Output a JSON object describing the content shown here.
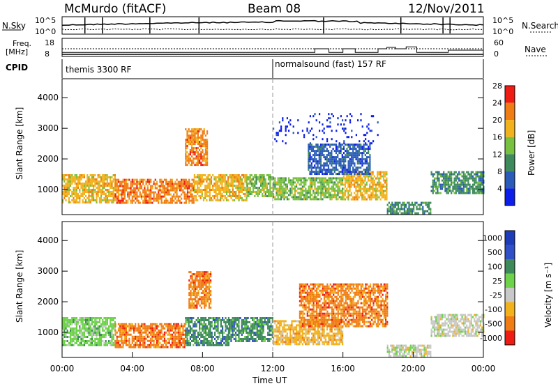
{
  "header": {
    "station": "McMurdo (fitACF)",
    "beam": "Beam 08",
    "date": "12/Nov/2011"
  },
  "chart_data": [
    {
      "name": "noise",
      "type": "line",
      "left_label": "N.Sky",
      "right_label": "N.Search",
      "left_ticks": [
        "10^5",
        "10^0"
      ],
      "right_ticks": [
        "10^5",
        "10^0"
      ]
    },
    {
      "name": "freq-nave",
      "type": "line",
      "left_label_1": "Freq.",
      "left_label_2": "[MHz]",
      "right_label": "Nave",
      "left_ticks": [
        "18",
        "8"
      ],
      "right_ticks": [
        "60",
        "0"
      ],
      "nave_steps": [
        {
          "t": 0,
          "v": 12
        },
        {
          "t": 14.0,
          "v": 12
        },
        {
          "t": 14.4,
          "v": 25
        },
        {
          "t": 15.2,
          "v": 12
        },
        {
          "t": 16.0,
          "v": 25
        },
        {
          "t": 16.7,
          "v": 12
        },
        {
          "t": 18.0,
          "v": 25
        },
        {
          "t": 18.5,
          "v": 30
        },
        {
          "t": 19.0,
          "v": 25
        },
        {
          "t": 19.6,
          "v": 32
        },
        {
          "t": 20.2,
          "v": 12
        },
        {
          "t": 21.5,
          "v": 12
        },
        {
          "t": 22.0,
          "v": 20
        },
        {
          "t": 24,
          "v": 20
        }
      ]
    },
    {
      "name": "cpid",
      "type": "table",
      "label": "CPID",
      "segments": [
        {
          "start": 0,
          "text": "themis 3300 RF"
        },
        {
          "start": 12,
          "text": "normalsound (fast) 157 RF"
        }
      ]
    },
    {
      "name": "power",
      "type": "heatmap",
      "ylabel": "Slant Range [km]",
      "yticks": [
        1000,
        2000,
        3000,
        4000
      ],
      "ylim": [
        180,
        4620
      ],
      "xlim": [
        0,
        24
      ],
      "colorbar_label": "Power [dB]",
      "colorbar_ticks": [
        "4",
        "8",
        "12",
        "16",
        "20",
        "24",
        "28"
      ],
      "colors": [
        "#0d1eea",
        "#2a5bb8",
        "#3e8a5a",
        "#78c040",
        "#f2b21c",
        "#f07c14",
        "#ee1c12"
      ],
      "blobs": [
        {
          "t0": 0.0,
          "t1": 3.0,
          "r0": 600,
          "r1": 1500,
          "level": 4
        },
        {
          "t0": 3.0,
          "t1": 7.5,
          "r0": 550,
          "r1": 1350,
          "level": 5
        },
        {
          "t0": 7.5,
          "t1": 10.5,
          "r0": 650,
          "r1": 1500,
          "level": 4
        },
        {
          "t0": 10.5,
          "t1": 12.0,
          "r0": 800,
          "r1": 1500,
          "level": 3
        },
        {
          "t0": 12.0,
          "t1": 16.0,
          "r0": 650,
          "r1": 1400,
          "level": 3
        },
        {
          "t0": 16.0,
          "t1": 18.5,
          "r0": 700,
          "r1": 1600,
          "level": 4
        },
        {
          "t0": 18.5,
          "t1": 21.0,
          "r0": 250,
          "r1": 600,
          "level": 2
        },
        {
          "t0": 21.0,
          "t1": 24.0,
          "r0": 900,
          "r1": 1600,
          "level": 2
        },
        {
          "t0": 7.0,
          "t1": 8.3,
          "r0": 1800,
          "r1": 3000,
          "level": 5
        },
        {
          "t0": 14.0,
          "t1": 17.5,
          "r0": 1500,
          "r1": 2500,
          "level": 1
        },
        {
          "t0": 12.0,
          "t1": 18.0,
          "r0": 2500,
          "r1": 3500,
          "level": 0
        }
      ]
    },
    {
      "name": "velocity",
      "type": "heatmap",
      "ylabel": "Slant Range [km]",
      "yticks": [
        1000,
        2000,
        3000,
        4000
      ],
      "ylim": [
        180,
        4620
      ],
      "xlim": [
        0,
        24
      ],
      "xticks": [
        "00:00",
        "04:00",
        "08:00",
        "12:00",
        "16:00",
        "20:00",
        "00:00"
      ],
      "xlabel": "Time UT",
      "colorbar_label": "Velocity [m s⁻¹]",
      "colorbar_ticks": [
        "1000",
        "500",
        "100",
        "25",
        "-25",
        "-100",
        "-500",
        "-1000"
      ],
      "colors": [
        "#1e3cb8",
        "#3050c8",
        "#3e8a5a",
        "#6ed24a",
        "#c8c8c8",
        "#f2b21c",
        "#f07c14",
        "#ee1c12"
      ],
      "blobs": [
        {
          "t0": 0.0,
          "t1": 3.0,
          "r0": 600,
          "r1": 1500,
          "level": 3
        },
        {
          "t0": 3.0,
          "t1": 7.0,
          "r0": 500,
          "r1": 1300,
          "level": 6
        },
        {
          "t0": 7.0,
          "t1": 9.5,
          "r0": 600,
          "r1": 1500,
          "level": 2
        },
        {
          "t0": 9.5,
          "t1": 12.0,
          "r0": 700,
          "r1": 1500,
          "level": 2
        },
        {
          "t0": 12.0,
          "t1": 16.0,
          "r0": 600,
          "r1": 1400,
          "level": 5
        },
        {
          "t0": 13.5,
          "t1": 18.5,
          "r0": 1200,
          "r1": 2600,
          "level": 6
        },
        {
          "t0": 7.2,
          "t1": 8.5,
          "r0": 1800,
          "r1": 3000,
          "level": 6
        },
        {
          "t0": 18.5,
          "t1": 21.0,
          "r0": 250,
          "r1": 600,
          "level": 4
        },
        {
          "t0": 21.0,
          "t1": 24.0,
          "r0": 900,
          "r1": 1600,
          "level": 4
        }
      ]
    }
  ]
}
